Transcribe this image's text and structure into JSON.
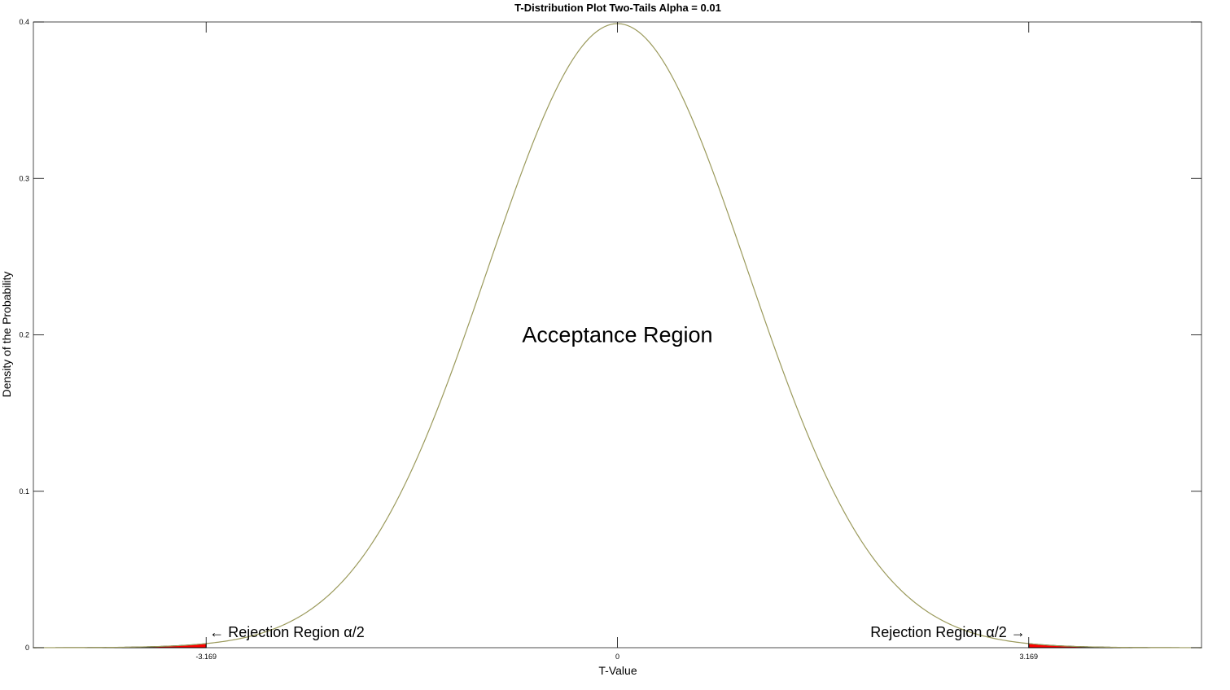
{
  "chart_data": {
    "type": "area",
    "title": "T-Distribution Plot Two-Tails Alpha = 0.01",
    "xlabel": "T-Value",
    "ylabel": "Density of the Probability",
    "xlim": [
      -4.5,
      4.5
    ],
    "ylim": [
      0,
      0.4
    ],
    "x_ticks": [
      -3.169,
      0,
      3.169
    ],
    "x_tick_labels": [
      "-3.169",
      "0",
      "3.169"
    ],
    "y_ticks": [
      0,
      0.1,
      0.2,
      0.3,
      0.4
    ],
    "y_tick_labels": [
      "0",
      "0.1",
      "0.2",
      "0.3",
      "0.4"
    ],
    "grid": false,
    "alpha": 0.01,
    "critical_values": [
      -3.169,
      3.169
    ],
    "curve_color": "#9b9a5c",
    "rejection_fill_color": "#ff0000",
    "annotations": {
      "acceptance": {
        "text": "Acceptance Region",
        "x": 0,
        "y": 0.2
      },
      "rejection_left": {
        "text": "← Rejection Region α/2",
        "x": -3.169,
        "y": 0.01
      },
      "rejection_right": {
        "text": "Rejection Region α/2 →",
        "x": 3.169,
        "y": 0.01
      }
    }
  }
}
